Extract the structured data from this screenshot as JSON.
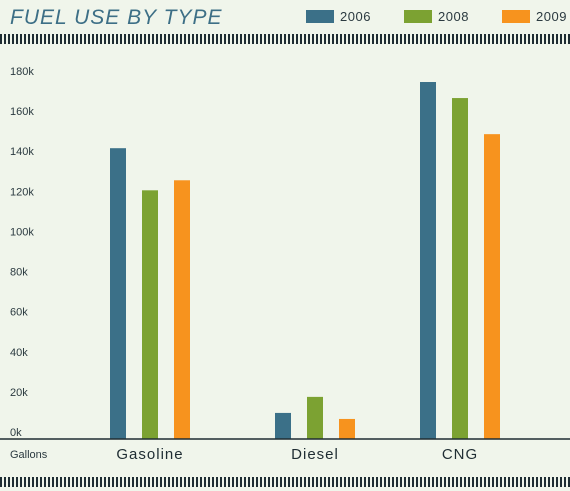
{
  "chart_data": {
    "type": "bar",
    "title": "FUEL USE BY TYPE",
    "ylabel": "Gallons",
    "categories": [
      "Gasoline",
      "Diesel",
      "CNG"
    ],
    "series": [
      {
        "name": "2006",
        "color": "#3b7088",
        "values": [
          145000,
          13000,
          178000
        ]
      },
      {
        "name": "2008",
        "color": "#7ca232",
        "values": [
          124000,
          21000,
          170000
        ]
      },
      {
        "name": "2009",
        "color": "#f7931e",
        "values": [
          129000,
          10000,
          152000
        ]
      }
    ],
    "ylim": [
      0,
      180000
    ],
    "yticks": [
      0,
      20000,
      40000,
      60000,
      80000,
      100000,
      120000,
      140000,
      160000,
      180000
    ],
    "ytick_labels": [
      "0k",
      "20k",
      "40k",
      "60k",
      "80k",
      "100k",
      "120k",
      "140k",
      "160k",
      "180k"
    ],
    "grid": false,
    "legend": "top-right"
  }
}
